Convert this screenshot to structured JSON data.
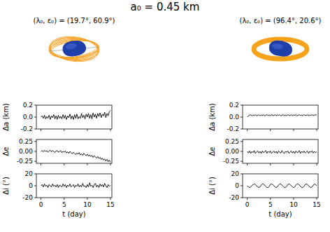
{
  "title": "a₀ = 0.45 km",
  "chart_data": [
    {
      "type": "line",
      "subtitle": "(λ₀, ε₀) = (19.7°, 60.9°)",
      "y_label": "Δa (km)",
      "color": "#000000",
      "xlim": [
        -1,
        15.3
      ],
      "xticks": [
        0,
        5,
        10,
        15
      ],
      "ylim": [
        -0.2,
        0.2
      ],
      "yticks": [
        -0.2,
        {
          "value": 0,
          "label": "0.0"
        },
        0.2
      ],
      "tick_labels": "y",
      "x": [
        0,
        0.25,
        0.5,
        0.75,
        1,
        1.25,
        1.5,
        1.75,
        2,
        2.25,
        2.5,
        2.75,
        3,
        3.25,
        3.5,
        3.75,
        4,
        4.25,
        4.5,
        4.75,
        5,
        5.25,
        5.5,
        5.75,
        6,
        6.25,
        6.5,
        6.75,
        7,
        7.25,
        7.5,
        7.75,
        8,
        8.25,
        8.5,
        8.75,
        9,
        9.25,
        9.5,
        9.75,
        10,
        10.25,
        10.5,
        10.75,
        11,
        11.25,
        11.5,
        11.75,
        12,
        12.25,
        12.5,
        12.75,
        13,
        13.25,
        13.5,
        13.75,
        14,
        14.25,
        14.5,
        14.75,
        15
      ],
      "values": [
        0.0,
        0.02,
        -0.02,
        0.03,
        -0.03,
        0.01,
        -0.02,
        0.03,
        -0.04,
        0.02,
        -0.01,
        0.04,
        -0.03,
        0.02,
        -0.04,
        0.03,
        -0.02,
        0.01,
        -0.03,
        0.04,
        -0.02,
        0.03,
        -0.04,
        0.02,
        -0.01,
        0.05,
        -0.03,
        0.02,
        -0.04,
        0.04,
        -0.02,
        0.05,
        -0.03,
        0.01,
        -0.02,
        0.06,
        -0.01,
        0.03,
        -0.03,
        0.05,
        0.0,
        0.06,
        -0.02,
        0.04,
        -0.03,
        0.07,
        0.0,
        0.05,
        -0.02,
        0.06,
        0.01,
        0.07,
        -0.01,
        0.05,
        0.02,
        0.08,
        -0.01,
        0.06,
        0.02,
        0.09,
        0.11
      ]
    },
    {
      "type": "line",
      "y_label": "Δe",
      "color": "#000000",
      "xlim": [
        -1,
        15.3
      ],
      "xticks": [
        0,
        5,
        10,
        15
      ],
      "ylim": [
        -0.3,
        0.3
      ],
      "yticks": [
        -0.25,
        {
          "value": 0,
          "label": "0.00"
        },
        0.25
      ],
      "tick_labels": "y",
      "x": [
        0,
        0.25,
        0.5,
        0.75,
        1,
        1.25,
        1.5,
        1.75,
        2,
        2.25,
        2.5,
        2.75,
        3,
        3.25,
        3.5,
        3.75,
        4,
        4.25,
        4.5,
        4.75,
        5,
        5.25,
        5.5,
        5.75,
        6,
        6.25,
        6.5,
        6.75,
        7,
        7.25,
        7.5,
        7.75,
        8,
        8.25,
        8.5,
        8.75,
        9,
        9.25,
        9.5,
        9.75,
        10,
        10.25,
        10.5,
        10.75,
        11,
        11.25,
        11.5,
        11.75,
        12,
        12.25,
        12.5,
        12.75,
        13,
        13.25,
        13.5,
        13.75,
        14,
        14.25,
        14.5,
        14.75,
        15
      ],
      "values": [
        0.0,
        0.02,
        -0.01,
        0.03,
        0.0,
        0.02,
        -0.02,
        0.01,
        0.03,
        -0.01,
        0.02,
        0.0,
        -0.03,
        0.01,
        0.02,
        -0.02,
        0.0,
        0.02,
        -0.03,
        0.0,
        -0.02,
        0.01,
        -0.04,
        -0.01,
        -0.05,
        0.0,
        -0.03,
        -0.06,
        -0.02,
        -0.05,
        -0.08,
        -0.04,
        -0.07,
        -0.03,
        -0.09,
        -0.06,
        -0.1,
        -0.05,
        -0.08,
        -0.11,
        -0.07,
        -0.12,
        -0.09,
        -0.13,
        -0.1,
        -0.15,
        -0.11,
        -0.14,
        -0.17,
        -0.13,
        -0.18,
        -0.15,
        -0.2,
        -0.17,
        -0.22,
        -0.19,
        -0.24,
        -0.2,
        -0.26,
        -0.22,
        -0.27
      ]
    },
    {
      "type": "line",
      "y_label": "Δi (°)",
      "x_label": "t (day)",
      "color": "#000000",
      "xlim": [
        -1,
        15.3
      ],
      "xticks": [
        0,
        5,
        10,
        15
      ],
      "ylim": [
        -20,
        20
      ],
      "yticks": [
        -20,
        0,
        20
      ],
      "x": [
        0,
        0.25,
        0.5,
        0.75,
        1,
        1.25,
        1.5,
        1.75,
        2,
        2.25,
        2.5,
        2.75,
        3,
        3.25,
        3.5,
        3.75,
        4,
        4.25,
        4.5,
        4.75,
        5,
        5.25,
        5.5,
        5.75,
        6,
        6.25,
        6.5,
        6.75,
        7,
        7.25,
        7.5,
        7.75,
        8,
        8.25,
        8.5,
        8.75,
        9,
        9.25,
        9.5,
        9.75,
        10,
        10.25,
        10.5,
        10.75,
        11,
        11.25,
        11.5,
        11.75,
        12,
        12.25,
        12.5,
        12.75,
        13,
        13.25,
        13.5,
        13.75,
        14,
        14.25,
        14.5,
        14.75,
        15
      ],
      "values": [
        0,
        2,
        -2,
        3,
        -1,
        1,
        -3,
        2,
        0,
        -2,
        3,
        -1,
        1,
        -2,
        2,
        -3,
        1,
        0,
        -2,
        3,
        -1,
        2,
        -3,
        1,
        -1,
        3,
        -2,
        0,
        2,
        -3,
        1,
        -1,
        3,
        -2,
        1,
        -2,
        4,
        -1,
        0,
        -3,
        2,
        -2,
        5,
        -1,
        1,
        -3,
        2,
        4,
        -2,
        1,
        -3,
        3,
        -1,
        2,
        -2,
        4,
        0,
        -3,
        2,
        -1,
        1
      ]
    },
    {
      "type": "line",
      "subtitle": "(λ₀, ε₀) = (96.4°, 20.6°)",
      "y_label": "Δa (km)",
      "color": "#000000",
      "xlim": [
        -1,
        15.3
      ],
      "xticks": [
        0,
        5,
        10,
        15
      ],
      "ylim": [
        -0.2,
        0.2
      ],
      "yticks": [
        -0.2,
        {
          "value": 0,
          "label": "0.0"
        },
        0.2
      ],
      "tick_labels": "y",
      "x": [
        0,
        0.25,
        0.5,
        0.75,
        1,
        1.25,
        1.5,
        1.75,
        2,
        2.25,
        2.5,
        2.75,
        3,
        3.25,
        3.5,
        3.75,
        4,
        4.25,
        4.5,
        4.75,
        5,
        5.25,
        5.5,
        5.75,
        6,
        6.25,
        6.5,
        6.75,
        7,
        7.25,
        7.5,
        7.75,
        8,
        8.25,
        8.5,
        8.75,
        9,
        9.25,
        9.5,
        9.75,
        10,
        10.25,
        10.5,
        10.75,
        11,
        11.25,
        11.5,
        11.75,
        12,
        12.25,
        12.5,
        12.75,
        13,
        13.25,
        13.5,
        13.75,
        14,
        14.25,
        14.5,
        14.75,
        15
      ],
      "values": [
        0.0,
        0.02,
        0.03,
        0.04,
        0.02,
        0.035,
        0.025,
        0.04,
        0.02,
        0.03,
        0.04,
        0.02,
        0.035,
        0.025,
        0.04,
        0.02,
        0.03,
        0.04,
        0.025,
        0.035,
        0.02,
        0.04,
        0.03,
        0.025,
        0.04,
        0.02,
        0.035,
        0.03,
        0.04,
        0.02,
        0.03,
        0.04,
        0.025,
        0.035,
        0.02,
        0.04,
        0.03,
        0.025,
        0.04,
        0.02,
        0.035,
        0.03,
        0.04,
        0.02,
        0.03,
        0.04,
        0.025,
        0.035,
        0.02,
        0.04,
        0.03,
        0.025,
        0.04,
        0.02,
        0.035,
        0.03,
        0.04,
        0.025,
        0.03,
        0.04,
        0.03
      ]
    },
    {
      "type": "line",
      "y_label": "Δe",
      "color": "#000000",
      "xlim": [
        -1,
        15.3
      ],
      "xticks": [
        0,
        5,
        10,
        15
      ],
      "ylim": [
        -0.3,
        0.3
      ],
      "yticks": [
        -0.25,
        {
          "value": 0,
          "label": "0.00"
        },
        0.25
      ],
      "tick_labels": "y",
      "x": [
        0,
        0.25,
        0.5,
        0.75,
        1,
        1.25,
        1.5,
        1.75,
        2,
        2.25,
        2.5,
        2.75,
        3,
        3.25,
        3.5,
        3.75,
        4,
        4.25,
        4.5,
        4.75,
        5,
        5.25,
        5.5,
        5.75,
        6,
        6.25,
        6.5,
        6.75,
        7,
        7.25,
        7.5,
        7.75,
        8,
        8.25,
        8.5,
        8.75,
        9,
        9.25,
        9.5,
        9.75,
        10,
        10.25,
        10.5,
        10.75,
        11,
        11.25,
        11.5,
        11.75,
        12,
        12.25,
        12.5,
        12.75,
        13,
        13.25,
        13.5,
        13.75,
        14,
        14.25,
        14.5,
        14.75,
        15
      ],
      "values": [
        0.0,
        -0.04,
        0.01,
        -0.05,
        0.0,
        -0.03,
        0.02,
        -0.05,
        -0.01,
        0.01,
        -0.04,
        0.0,
        -0.05,
        0.01,
        -0.03,
        -0.01,
        0.02,
        -0.05,
        0.0,
        -0.03,
        0.01,
        -0.05,
        -0.02,
        0.01,
        -0.04,
        0.0,
        -0.05,
        0.01,
        -0.02,
        -0.04,
        0.02,
        -0.03,
        -0.05,
        0.0,
        -0.02,
        0.01,
        -0.05,
        -0.01,
        0.01,
        -0.04,
        0.0,
        -0.05,
        0.01,
        -0.03,
        -0.02,
        0.02,
        -0.05,
        0.0,
        -0.03,
        0.01,
        -0.04,
        -0.01,
        0.01,
        -0.05,
        0.0,
        -0.02,
        0.01,
        -0.04,
        0.0,
        -0.03,
        -0.01
      ]
    },
    {
      "type": "line",
      "y_label": "Δi (°)",
      "x_label": "t (day)",
      "color": "#000000",
      "xlim": [
        -1,
        15.3
      ],
      "xticks": [
        0,
        5,
        10,
        15
      ],
      "ylim": [
        -20,
        20
      ],
      "yticks": [
        -20,
        0,
        20
      ],
      "x": [
        0,
        0.25,
        0.5,
        0.75,
        1,
        1.25,
        1.5,
        1.75,
        2,
        2.25,
        2.5,
        2.75,
        3,
        3.25,
        3.5,
        3.75,
        4,
        4.25,
        4.5,
        4.75,
        5,
        5.25,
        5.5,
        5.75,
        6,
        6.25,
        6.5,
        6.75,
        7,
        7.25,
        7.5,
        7.75,
        8,
        8.25,
        8.5,
        8.75,
        9,
        9.25,
        9.5,
        9.75,
        10,
        10.25,
        10.5,
        10.75,
        11,
        11.25,
        11.5,
        11.75,
        12,
        12.25,
        12.5,
        12.75,
        13,
        13.25,
        13.5,
        13.75,
        14,
        14.25,
        14.5,
        14.75,
        15
      ],
      "values": [
        0,
        -2,
        -3,
        -2,
        0,
        2,
        3,
        2,
        0,
        -2,
        -3,
        -2,
        1,
        3,
        3,
        1,
        -1,
        -3,
        -3,
        -1,
        2,
        3,
        2,
        0,
        -2,
        -3,
        -2,
        1,
        3,
        3,
        1,
        -1,
        -3,
        -3,
        -1,
        2,
        3,
        2,
        0,
        -2,
        -3,
        -2,
        1,
        3,
        3,
        1,
        -1,
        -3,
        -3,
        -1,
        2,
        3,
        2,
        0,
        -2,
        -3,
        -2,
        1,
        3,
        2,
        0
      ]
    }
  ]
}
